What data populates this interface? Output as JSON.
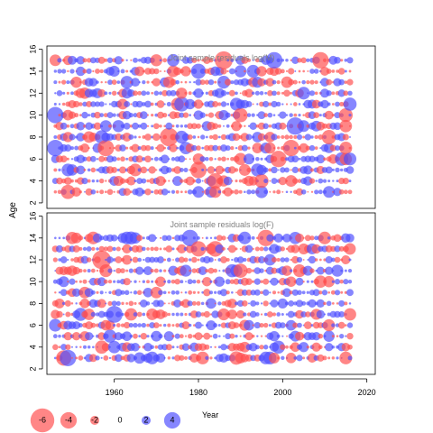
{
  "chart_data": {
    "type": "scatter",
    "ylabel": "Age",
    "legend": {
      "title": "Year",
      "placement": "bottom-left",
      "entries": [
        {
          "label": "-6",
          "value": -6
        },
        {
          "label": "-4",
          "value": -4
        },
        {
          "label": "-2",
          "value": -2
        },
        {
          "label": "0",
          "value": 0
        },
        {
          "label": "2",
          "value": 2
        },
        {
          "label": "4",
          "value": 4
        }
      ]
    },
    "colors": {
      "negative": "#ff4d4d",
      "positive": "#4d4dff",
      "title": "#808080"
    },
    "xlim": [
      1944,
      2022
    ],
    "x_ticks": [
      1960,
      1980,
      2000,
      2020
    ],
    "y_ticks": [
      2,
      4,
      6,
      8,
      10,
      12,
      14,
      16
    ],
    "panels": [
      {
        "title": "Joint sample residuals log(M)",
        "ylim": [
          1.5,
          16.3
        ],
        "ages": [
          3,
          4,
          5,
          6,
          7,
          8,
          9,
          10,
          11,
          12,
          13,
          14,
          15
        ],
        "years": [
          1946,
          2016
        ],
        "residual_scale": [
          -6,
          6
        ],
        "notable_points": [
          {
            "year": 1946,
            "age": 10,
            "value": 4
          },
          {
            "year": 1946,
            "age": 7,
            "value": 4
          },
          {
            "year": 1949,
            "age": 5,
            "value": 3
          },
          {
            "year": 1958,
            "age": 7,
            "value": -4
          },
          {
            "year": 1963,
            "age": 13,
            "value": 3
          },
          {
            "year": 1966,
            "age": 3,
            "value": 2
          },
          {
            "year": 1980,
            "age": 5,
            "value": -4
          },
          {
            "year": 1989,
            "age": 11,
            "value": 3
          },
          {
            "year": 1993,
            "age": 14,
            "value": 3
          },
          {
            "year": 1998,
            "age": 15,
            "value": 4
          },
          {
            "year": 1999,
            "age": 6,
            "value": -4
          },
          {
            "year": 2002,
            "age": 7,
            "value": -4
          },
          {
            "year": 2005,
            "age": 12,
            "value": 3
          },
          {
            "year": 2009,
            "age": 15,
            "value": -4
          },
          {
            "year": 2015,
            "age": 7,
            "value": -3
          },
          {
            "year": 2016,
            "age": 6,
            "value": 3
          }
        ]
      },
      {
        "title": "Joint sample residuals log(F)",
        "ylim": [
          1.5,
          16.3
        ],
        "ages": [
          3,
          4,
          5,
          6,
          7,
          8,
          9,
          10,
          11,
          12,
          13,
          14
        ],
        "years": [
          1946,
          2016
        ],
        "residual_scale": [
          -6,
          6
        ],
        "notable_points": [
          {
            "year": 1949,
            "age": 3,
            "value": 4
          },
          {
            "year": 1946,
            "age": 6,
            "value": 3
          },
          {
            "year": 1955,
            "age": 14,
            "value": -3
          },
          {
            "year": 1963,
            "age": 14,
            "value": 3
          },
          {
            "year": 1969,
            "age": 3,
            "value": 3
          },
          {
            "year": 1978,
            "age": 14,
            "value": 4
          },
          {
            "year": 1981,
            "age": 3,
            "value": -3
          },
          {
            "year": 1991,
            "age": 14,
            "value": 3
          },
          {
            "year": 1996,
            "age": 14,
            "value": -4
          },
          {
            "year": 1996,
            "age": 3,
            "value": 3
          },
          {
            "year": 2004,
            "age": 11,
            "value": -3
          },
          {
            "year": 2010,
            "age": 14,
            "value": -3
          },
          {
            "year": 2015,
            "age": 3,
            "value": -3
          }
        ]
      }
    ]
  }
}
